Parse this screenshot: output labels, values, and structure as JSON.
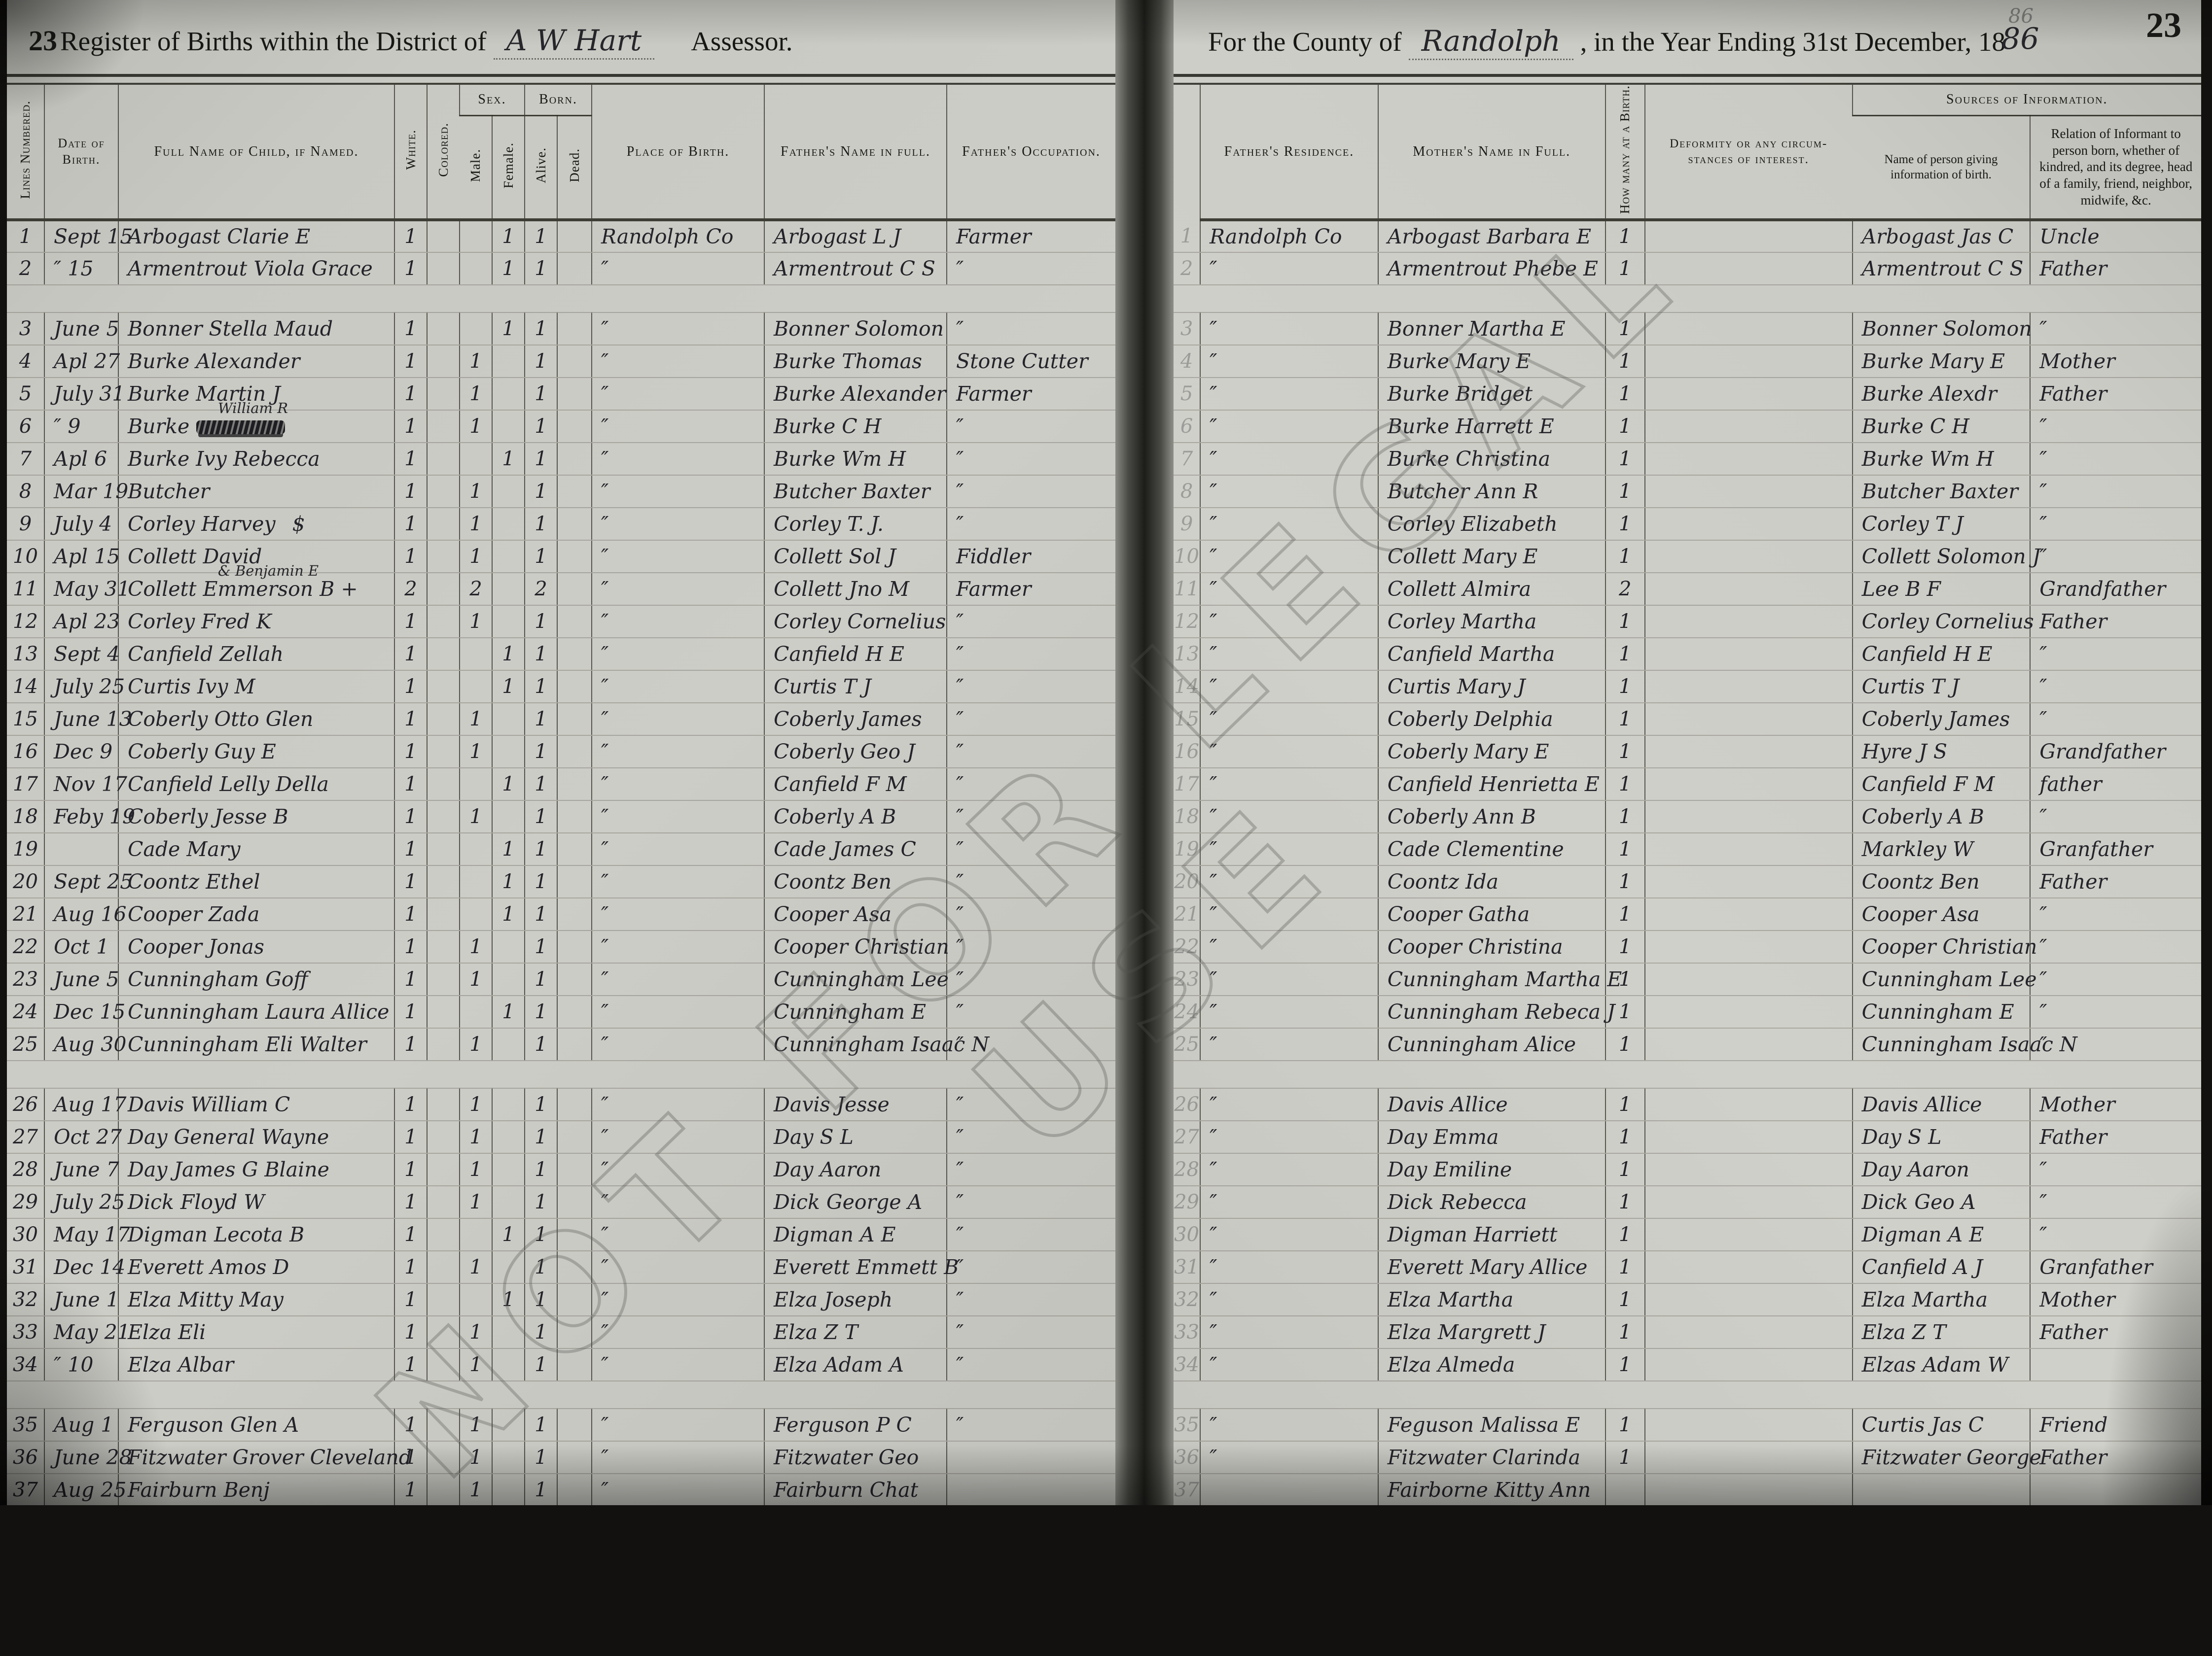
{
  "header": {
    "page_number_left": "23",
    "page_number_right": "23",
    "title_left_pre": "Register of Births within the District of",
    "district_handwritten": "A W Hart",
    "assessor_label": "Assessor.",
    "title_right_pre": "For the County of",
    "county_handwritten": "Randolph",
    "title_right_mid": ", in the Year Ending 31st December, 18",
    "year_handwritten": "86",
    "year_ghost": "86"
  },
  "watermark": {
    "text": "NOT FOR LEGAL USE"
  },
  "columns": {
    "lines": "Lines Numbered.",
    "date": "Date of Birth.",
    "child": "Full Name of Child, if Named.",
    "white": "White.",
    "colored": "Colored.",
    "sex": "Sex.",
    "male": "Male.",
    "female": "Female.",
    "born": "Born.",
    "alive": "Alive.",
    "dead": "Dead.",
    "place": "Place of Birth.",
    "father": "Father's Name in full.",
    "occupation": "Father's Occupation.",
    "residence": "Father's Residence.",
    "mother": "Mother's Name in Full.",
    "how_many": "How many at a Birth.",
    "deformity": "Deformity or any circum- stances of interest.",
    "sources": "Sources of Information.",
    "informant": "Name of person giving information of birth.",
    "relation": "Relation of Informant to person born, whether of kindred, and its degree, head of a family, friend, neighbor, midwife, &c."
  },
  "rows": [
    {
      "n": "1",
      "date": "Sept 15",
      "child": "Arbogast Clarie E",
      "w": "1",
      "c": "",
      "m": "",
      "f": "1",
      "al": "1",
      "d": "",
      "place": "Randolph Co",
      "father": "Arbogast L J",
      "occ": "Farmer",
      "res": "Randolph Co",
      "mother": "Arbogast Barbara E",
      "hm": "1",
      "deform": "",
      "inf": "Arbogast Jas C",
      "rel": "Uncle"
    },
    {
      "n": "2",
      "date": "″ 15",
      "child": "Armentrout Viola Grace",
      "w": "1",
      "c": "",
      "m": "",
      "f": "1",
      "al": "1",
      "d": "",
      "place": "″",
      "father": "Armentrout C S",
      "occ": "″",
      "res": "″",
      "mother": "Armentrout Phebe E",
      "hm": "1",
      "deform": "",
      "inf": "Armentrout C S",
      "rel": "Father"
    },
    {
      "gap": true,
      "n": "3",
      "date": "June 5",
      "child": "Bonner Stella Maud",
      "w": "1",
      "c": "",
      "m": "",
      "f": "1",
      "al": "1",
      "d": "",
      "place": "″",
      "father": "Bonner Solomon",
      "occ": "″",
      "res": "″",
      "mother": "Bonner Martha E",
      "hm": "1",
      "deform": "",
      "inf": "Bonner Solomon",
      "rel": "″"
    },
    {
      "n": "4",
      "date": "Apl 27",
      "child": "Burke Alexander",
      "w": "1",
      "c": "",
      "m": "1",
      "f": "",
      "al": "1",
      "d": "",
      "place": "″",
      "father": "Burke Thomas",
      "occ": "Stone Cutter",
      "res": "″",
      "mother": "Burke Mary E",
      "hm": "1",
      "deform": "",
      "inf": "Burke Mary E",
      "rel": "Mother"
    },
    {
      "n": "5",
      "date": "July 31",
      "child": "Burke Martin J",
      "w": "1",
      "c": "",
      "m": "1",
      "f": "",
      "al": "1",
      "d": "",
      "place": "″",
      "father": "Burke Alexander",
      "occ": "Farmer",
      "res": "″",
      "mother": "Burke Bridget",
      "hm": "1",
      "deform": "",
      "inf": "Burke Alexdr",
      "rel": "Father"
    },
    {
      "n": "6",
      "date": "″ 9",
      "child": "Burke",
      "struck": true,
      "sup": "William R",
      "w": "1",
      "c": "",
      "m": "1",
      "f": "",
      "al": "1",
      "d": "",
      "place": "″",
      "father": "Burke C H",
      "occ": "″",
      "res": "″",
      "mother": "Burke Harrett E",
      "hm": "1",
      "deform": "",
      "inf": "Burke C H",
      "rel": "″"
    },
    {
      "n": "7",
      "date": "Apl 6",
      "child": "Burke Ivy Rebecca",
      "w": "1",
      "c": "",
      "m": "",
      "f": "1",
      "al": "1",
      "d": "",
      "place": "″",
      "father": "Burke Wm H",
      "occ": "″",
      "res": "″",
      "mother": "Burke Christina",
      "hm": "1",
      "deform": "",
      "inf": "Burke Wm H",
      "rel": "″"
    },
    {
      "n": "8",
      "date": "Mar 19",
      "child": "Butcher",
      "w": "1",
      "c": "",
      "m": "1",
      "f": "",
      "al": "1",
      "d": "",
      "place": "″",
      "father": "Butcher Baxter",
      "occ": "″",
      "res": "″",
      "mother": "Butcher Ann R",
      "hm": "1",
      "deform": "",
      "inf": "Butcher Baxter",
      "rel": "″"
    },
    {
      "n": "9",
      "date": "July 4",
      "child": "Corley Harvey",
      "tail": "$",
      "w": "1",
      "c": "",
      "m": "1",
      "f": "",
      "al": "1",
      "d": "",
      "place": "″",
      "father": "Corley T. J.",
      "occ": "″",
      "res": "″",
      "mother": "Corley Elizabeth",
      "hm": "1",
      "deform": "",
      "inf": "Corley T J",
      "rel": "″"
    },
    {
      "n": "10",
      "date": "Apl 15",
      "child": "Collett David",
      "w": "1",
      "c": "",
      "m": "1",
      "f": "",
      "al": "1",
      "d": "",
      "place": "″",
      "father": "Collett Sol J",
      "occ": "Fiddler",
      "res": "″",
      "mother": "Collett Mary E",
      "hm": "1",
      "deform": "",
      "inf": "Collett Solomon J",
      "rel": "″"
    },
    {
      "n": "11",
      "date": "May 31",
      "child": "Collett Emmerson B +",
      "sup": "& Benjamin E",
      "w": "2",
      "c": "",
      "m": "2",
      "f": "",
      "al": "2",
      "d": "",
      "place": "″",
      "father": "Collett Jno M",
      "occ": "Farmer",
      "res": "″",
      "mother": "Collett Almira",
      "hm": "2",
      "deform": "",
      "inf": "Lee B F",
      "rel": "Grandfather"
    },
    {
      "n": "12",
      "date": "Apl 23",
      "child": "Corley Fred K",
      "w": "1",
      "c": "",
      "m": "1",
      "f": "",
      "al": "1",
      "d": "",
      "place": "″",
      "father": "Corley Cornelius",
      "occ": "″",
      "res": "″",
      "mother": "Corley Martha",
      "hm": "1",
      "deform": "",
      "inf": "Corley Cornelius",
      "rel": "Father"
    },
    {
      "n": "13",
      "date": "Sept 4",
      "child": "Canfield Zellah",
      "w": "1",
      "c": "",
      "m": "",
      "f": "1",
      "al": "1",
      "d": "",
      "place": "″",
      "father": "Canfield H E",
      "occ": "″",
      "res": "″",
      "mother": "Canfield Martha",
      "hm": "1",
      "deform": "",
      "inf": "Canfield H E",
      "rel": "″"
    },
    {
      "n": "14",
      "date": "July 25",
      "child": "Curtis Ivy M",
      "w": "1",
      "c": "",
      "m": "",
      "f": "1",
      "al": "1",
      "d": "",
      "place": "″",
      "father": "Curtis T J",
      "occ": "″",
      "res": "″",
      "mother": "Curtis Mary J",
      "hm": "1",
      "deform": "",
      "inf": "Curtis T J",
      "rel": "″"
    },
    {
      "n": "15",
      "date": "June 13",
      "child": "Coberly Otto Glen",
      "w": "1",
      "c": "",
      "m": "1",
      "f": "",
      "al": "1",
      "d": "",
      "place": "″",
      "father": "Coberly James",
      "occ": "″",
      "res": "″",
      "mother": "Coberly Delphia",
      "hm": "1",
      "deform": "",
      "inf": "Coberly James",
      "rel": "″"
    },
    {
      "n": "16",
      "date": "Dec 9",
      "child": "Coberly Guy E",
      "w": "1",
      "c": "",
      "m": "1",
      "f": "",
      "al": "1",
      "d": "",
      "place": "″",
      "father": "Coberly Geo J",
      "occ": "″",
      "res": "″",
      "mother": "Coberly Mary E",
      "hm": "1",
      "deform": "",
      "inf": "Hyre J S",
      "rel": "Grandfather"
    },
    {
      "n": "17",
      "date": "Nov 17",
      "child": "Canfield Lelly Della",
      "w": "1",
      "c": "",
      "m": "",
      "f": "1",
      "al": "1",
      "d": "",
      "place": "″",
      "father": "Canfield F M",
      "occ": "″",
      "res": "″",
      "mother": "Canfield Henrietta E",
      "hm": "1",
      "deform": "",
      "inf": "Canfield F M",
      "rel": "father"
    },
    {
      "n": "18",
      "date": "Feby 19",
      "child": "Coberly Jesse B",
      "w": "1",
      "c": "",
      "m": "1",
      "f": "",
      "al": "1",
      "d": "",
      "place": "″",
      "father": "Coberly A B",
      "occ": "″",
      "res": "″",
      "mother": "Coberly Ann B",
      "hm": "1",
      "deform": "",
      "inf": "Coberly A B",
      "rel": "″"
    },
    {
      "n": "19",
      "date": "",
      "child": "Cade Mary",
      "w": "1",
      "c": "",
      "m": "",
      "f": "1",
      "al": "1",
      "d": "",
      "place": "″",
      "father": "Cade James C",
      "occ": "″",
      "res": "″",
      "mother": "Cade Clementine",
      "hm": "1",
      "deform": "",
      "inf": "Markley W",
      "rel": "Granfather"
    },
    {
      "n": "20",
      "date": "Sept 25",
      "child": "Coontz Ethel",
      "w": "1",
      "c": "",
      "m": "",
      "f": "1",
      "al": "1",
      "d": "",
      "place": "″",
      "father": "Coontz Ben",
      "occ": "″",
      "res": "″",
      "mother": "Coontz Ida",
      "hm": "1",
      "deform": "",
      "inf": "Coontz Ben",
      "rel": "Father"
    },
    {
      "n": "21",
      "date": "Aug 16",
      "child": "Cooper Zada",
      "w": "1",
      "c": "",
      "m": "",
      "f": "1",
      "al": "1",
      "d": "",
      "place": "″",
      "father": "Cooper Asa",
      "occ": "″",
      "res": "″",
      "mother": "Cooper Gatha",
      "hm": "1",
      "deform": "",
      "inf": "Cooper Asa",
      "rel": "″"
    },
    {
      "n": "22",
      "date": "Oct 1",
      "child": "Cooper Jonas",
      "w": "1",
      "c": "",
      "m": "1",
      "f": "",
      "al": "1",
      "d": "",
      "place": "″",
      "father": "Cooper Christian",
      "occ": "″",
      "res": "″",
      "mother": "Cooper Christina",
      "hm": "1",
      "deform": "",
      "inf": "Cooper Christian",
      "rel": "″"
    },
    {
      "n": "23",
      "date": "June 5",
      "child": "Cunningham Goff",
      "w": "1",
      "c": "",
      "m": "1",
      "f": "",
      "al": "1",
      "d": "",
      "place": "″",
      "father": "Cunningham Lee",
      "occ": "″",
      "res": "″",
      "mother": "Cunningham Martha E",
      "hm": "1",
      "deform": "",
      "inf": "Cunningham Lee",
      "rel": "″"
    },
    {
      "n": "24",
      "date": "Dec 15",
      "child": "Cunningham Laura Allice",
      "w": "1",
      "c": "",
      "m": "",
      "f": "1",
      "al": "1",
      "d": "",
      "place": "″",
      "father": "Cunningham E",
      "occ": "″",
      "res": "″",
      "mother": "Cunningham Rebeca J",
      "hm": "1",
      "deform": "",
      "inf": "Cunningham E",
      "rel": "″"
    },
    {
      "n": "25",
      "date": "Aug 30",
      "child": "Cunningham Eli Walter",
      "w": "1",
      "c": "",
      "m": "1",
      "f": "",
      "al": "1",
      "d": "",
      "place": "″",
      "father": "Cunningham Isaac N",
      "occ": "″",
      "res": "″",
      "mother": "Cunningham Alice",
      "hm": "1",
      "deform": "",
      "inf": "Cunningham Isaac N",
      "rel": "″"
    },
    {
      "gap": true,
      "n": "26",
      "date": "Aug 17",
      "child": "Davis William C",
      "w": "1",
      "c": "",
      "m": "1",
      "f": "",
      "al": "1",
      "d": "",
      "place": "″",
      "father": "Davis Jesse",
      "occ": "″",
      "res": "″",
      "mother": "Davis Allice",
      "hm": "1",
      "deform": "",
      "inf": "Davis Allice",
      "rel": "Mother"
    },
    {
      "n": "27",
      "date": "Oct 27",
      "child": "Day General Wayne",
      "w": "1",
      "c": "",
      "m": "1",
      "f": "",
      "al": "1",
      "d": "",
      "place": "″",
      "father": "Day S L",
      "occ": "″",
      "res": "″",
      "mother": "Day Emma",
      "hm": "1",
      "deform": "",
      "inf": "Day S L",
      "rel": "Father"
    },
    {
      "n": "28",
      "date": "June 7",
      "child": "Day James G Blaine",
      "w": "1",
      "c": "",
      "m": "1",
      "f": "",
      "al": "1",
      "d": "",
      "place": "″",
      "father": "Day Aaron",
      "occ": "″",
      "res": "″",
      "mother": "Day Emiline",
      "hm": "1",
      "deform": "",
      "inf": "Day Aaron",
      "rel": "″"
    },
    {
      "n": "29",
      "date": "July 25",
      "child": "Dick Floyd W",
      "w": "1",
      "c": "",
      "m": "1",
      "f": "",
      "al": "1",
      "d": "",
      "place": "″",
      "father": "Dick George A",
      "occ": "″",
      "res": "″",
      "mother": "Dick Rebecca",
      "hm": "1",
      "deform": "",
      "inf": "Dick Geo A",
      "rel": "″"
    },
    {
      "n": "30",
      "date": "May 17",
      "child": "Digman Lecota B",
      "w": "1",
      "c": "",
      "m": "",
      "f": "1",
      "al": "1",
      "d": "",
      "place": "″",
      "father": "Digman A E",
      "occ": "″",
      "res": "″",
      "mother": "Digman Harriett",
      "hm": "1",
      "deform": "",
      "inf": "Digman A E",
      "rel": "″"
    },
    {
      "n": "31",
      "date": "Dec 14",
      "child": "Everett Amos D",
      "w": "1",
      "c": "",
      "m": "1",
      "f": "",
      "al": "1",
      "d": "",
      "place": "″",
      "father": "Everett Emmett B",
      "occ": "″",
      "res": "″",
      "mother": "Everett Mary Allice",
      "hm": "1",
      "deform": "",
      "inf": "Canfield A J",
      "rel": "Granfather"
    },
    {
      "n": "32",
      "date": "June 1",
      "child": "Elza Mitty May",
      "w": "1",
      "c": "",
      "m": "",
      "f": "1",
      "al": "1",
      "d": "",
      "place": "″",
      "father": "Elza Joseph",
      "occ": "″",
      "res": "″",
      "mother": "Elza Martha",
      "hm": "1",
      "deform": "",
      "inf": "Elza Martha",
      "rel": "Mother"
    },
    {
      "n": "33",
      "date": "May 21",
      "child": "Elza Eli",
      "w": "1",
      "c": "",
      "m": "1",
      "f": "",
      "al": "1",
      "d": "",
      "place": "″",
      "father": "Elza Z T",
      "occ": "″",
      "res": "″",
      "mother": "Elza Margrett J",
      "hm": "1",
      "deform": "",
      "inf": "Elza Z T",
      "rel": "Father"
    },
    {
      "n": "34",
      "date": "″ 10",
      "child": "Elza Albar",
      "w": "1",
      "c": "",
      "m": "1",
      "f": "",
      "al": "1",
      "d": "",
      "place": "″",
      "father": "Elza Adam A",
      "occ": "″",
      "res": "″",
      "mother": "Elza Almeda",
      "hm": "1",
      "deform": "",
      "inf": "Elzas Adam W",
      "rel": ""
    },
    {
      "gap": true,
      "n": "35",
      "date": "Aug 1",
      "child": "Ferguson Glen A",
      "w": "1",
      "c": "",
      "m": "1",
      "f": "",
      "al": "1",
      "d": "",
      "place": "″",
      "father": "Ferguson P C",
      "occ": "″",
      "res": "″",
      "mother": "Feguson Malissa E",
      "hm": "1",
      "deform": "",
      "inf": "Curtis Jas C",
      "rel": "Friend"
    },
    {
      "n": "36",
      "date": "June 28",
      "child": "Fitzwater Grover Cleveland",
      "w": "1",
      "c": "",
      "m": "1",
      "f": "",
      "al": "1",
      "d": "",
      "place": "″",
      "father": "Fitzwater Geo",
      "occ": "",
      "res": "″",
      "mother": "Fitzwater Clarinda",
      "hm": "1",
      "deform": "",
      "inf": "Fitzwater George",
      "rel": "Father"
    },
    {
      "n": "37",
      "date": "Aug 25",
      "child": "Fairburn Benj",
      "w": "1",
      "c": "",
      "m": "1",
      "f": "",
      "al": "1",
      "d": "",
      "place": "″",
      "father": "Fairburn Chat",
      "occ": "",
      "res": "",
      "mother": "Fairborne Kitty Ann",
      "hm": "",
      "deform": "",
      "inf": "",
      "rel": ""
    }
  ]
}
